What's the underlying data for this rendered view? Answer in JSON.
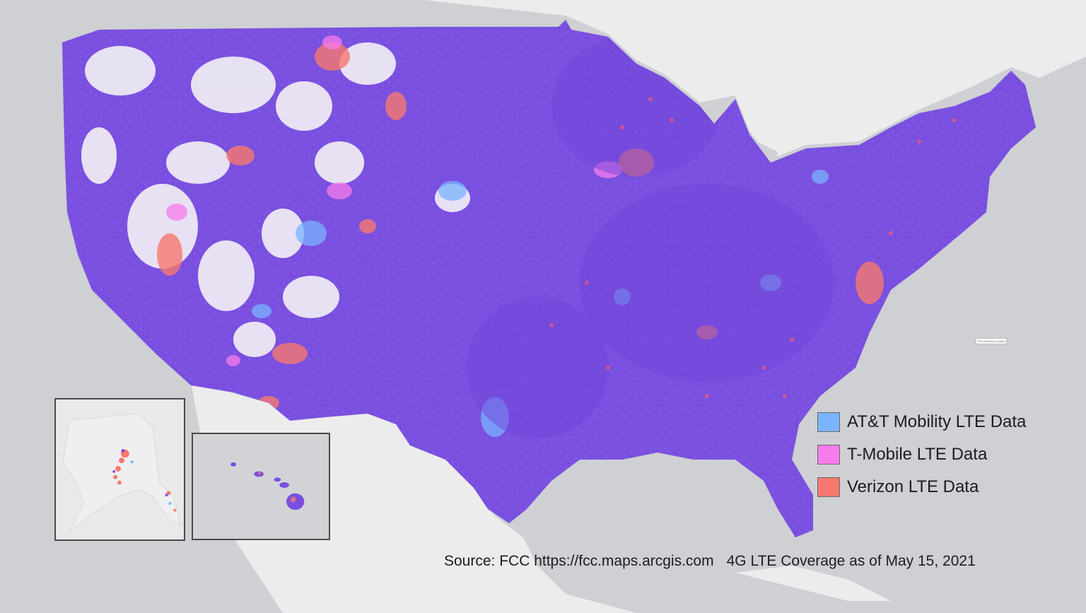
{
  "legend": {
    "items": [
      {
        "label": "AT&T Mobility LTE Data",
        "color": "#7ab3ff"
      },
      {
        "label": "T-Mobile LTE Data",
        "color": "#f77bea"
      },
      {
        "label": "Verizon LTE Data",
        "color": "#f6786e"
      }
    ]
  },
  "source": {
    "text": "Source: FCC https://fcc.maps.arcgis.com",
    "date": "4G LTE Coverage as of May 15, 2021"
  },
  "colors": {
    "overlap": "#7a4fe0",
    "background": "#cfd0d4",
    "land": "#ededee",
    "sparse": "#f4f2f6"
  },
  "insets": [
    "alaska",
    "hawaii"
  ],
  "geocoder": {
    "placeholder": "Find address or place"
  }
}
